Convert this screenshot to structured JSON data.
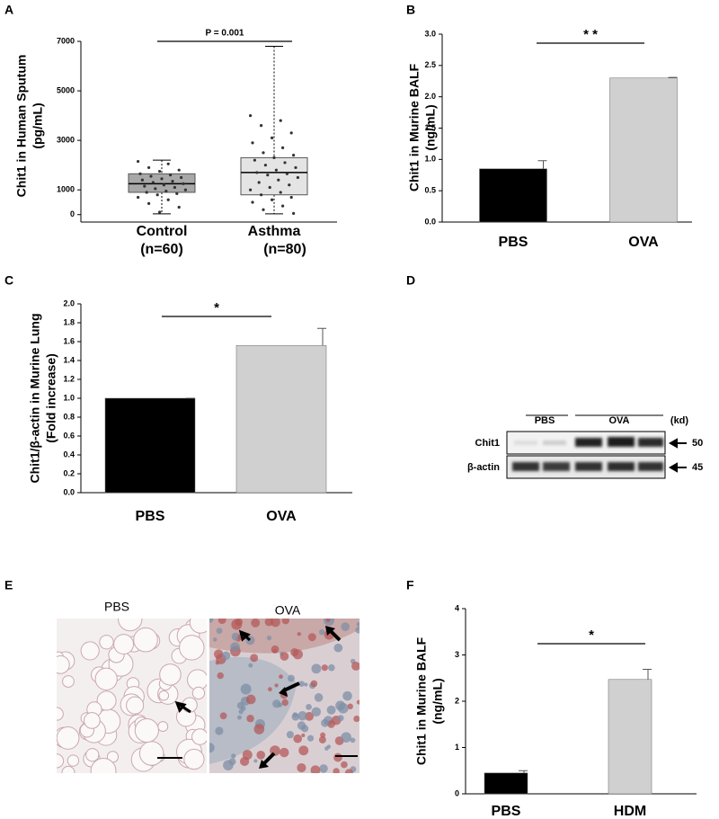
{
  "chart_data": [
    {
      "type": "box",
      "panel": "A",
      "ylabel": [
        "Chit1 in Human Sputum",
        "(pg/mL)"
      ],
      "categories": [
        "Control",
        "Asthma"
      ],
      "sample_sizes": [
        "(n=60)",
        "(n=80)"
      ],
      "colors": [
        "#a8a8a8",
        "#e4e4e4"
      ],
      "boxes": [
        {
          "min": 30,
          "q1": 900,
          "median": 1250,
          "q3": 1650,
          "max": 2200,
          "points": [
            2150,
            2050,
            1900,
            1800,
            1750,
            1650,
            1600,
            1550,
            1500,
            1450,
            1400,
            1350,
            1300,
            1250,
            1200,
            1150,
            1100,
            1050,
            1000,
            950,
            900,
            850,
            800,
            700,
            600,
            450,
            300,
            100
          ]
        },
        {
          "min": 30,
          "q1": 800,
          "median": 1700,
          "q3": 2300,
          "max": 6800,
          "points": [
            4000,
            3800,
            3600,
            3300,
            3100,
            2900,
            2700,
            2500,
            2400,
            2300,
            2200,
            2100,
            2000,
            1900,
            1800,
            1700,
            1650,
            1600,
            1500,
            1400,
            1300,
            1200,
            1100,
            1000,
            900,
            800,
            700,
            600,
            500,
            350,
            200,
            50
          ]
        }
      ],
      "annotation": "P = 0.001",
      "ylim": [
        -300,
        7000
      ],
      "yticks": [
        0,
        1000,
        3000,
        5000,
        7000
      ]
    },
    {
      "type": "bar",
      "panel": "B",
      "ylabel": [
        "Chit1 in Murine BALF",
        "(ng/mL)"
      ],
      "categories": [
        "PBS",
        "OVA"
      ],
      "values": [
        0.85,
        2.3
      ],
      "errors": [
        0.13,
        0.01
      ],
      "colors": [
        "#000000",
        "#d0d0d0"
      ],
      "annotation": "* *",
      "ylim": [
        0,
        3
      ],
      "yticks": [
        {
          "value": 0,
          "label": "0.0"
        },
        0.5,
        {
          "value": 1,
          "label": "1.0"
        },
        1.5,
        {
          "value": 2,
          "label": "2.0"
        },
        2.5,
        {
          "value": 3,
          "label": "3.0"
        }
      ]
    },
    {
      "type": "bar",
      "panel": "C",
      "ylabel": [
        "Chit1/β-actin in Murine Lung",
        "(Fold increase)"
      ],
      "categories": [
        "PBS",
        "OVA"
      ],
      "values": [
        1.0,
        1.56
      ],
      "errors": [
        0,
        0.18
      ],
      "colors": [
        "#000000",
        "#d0d0d0"
      ],
      "annotation": "*",
      "ylim": [
        0,
        2
      ],
      "yticks": [
        {
          "value": 0,
          "label": "0.0"
        },
        0.2,
        0.4,
        0.6,
        0.8,
        {
          "value": 1,
          "label": "1.0"
        },
        1.2,
        1.4,
        1.6,
        1.8,
        {
          "value": 2,
          "label": "2.0"
        }
      ]
    },
    {
      "type": "bar",
      "panel": "F",
      "ylabel": [
        "Chit1 in Murine BALF",
        "(ng/mL)"
      ],
      "categories": [
        "PBS",
        "HDM"
      ],
      "values": [
        0.45,
        2.47
      ],
      "errors": [
        0.05,
        0.22
      ],
      "colors": [
        "#000000",
        "#d0d0d0"
      ],
      "annotation": "*",
      "ylim": [
        0,
        4
      ],
      "yticks": [
        0,
        1,
        2,
        3,
        4
      ]
    }
  ],
  "blot": {
    "panel": "D",
    "groups": [
      "PBS",
      "OVA"
    ],
    "unit": "(kd)",
    "rows": [
      {
        "label": "Chit1",
        "size": "50"
      },
      {
        "label": "β-actin",
        "size": "45"
      }
    ]
  },
  "micrographs": {
    "panel": "E",
    "labels": [
      "PBS",
      "OVA"
    ]
  }
}
